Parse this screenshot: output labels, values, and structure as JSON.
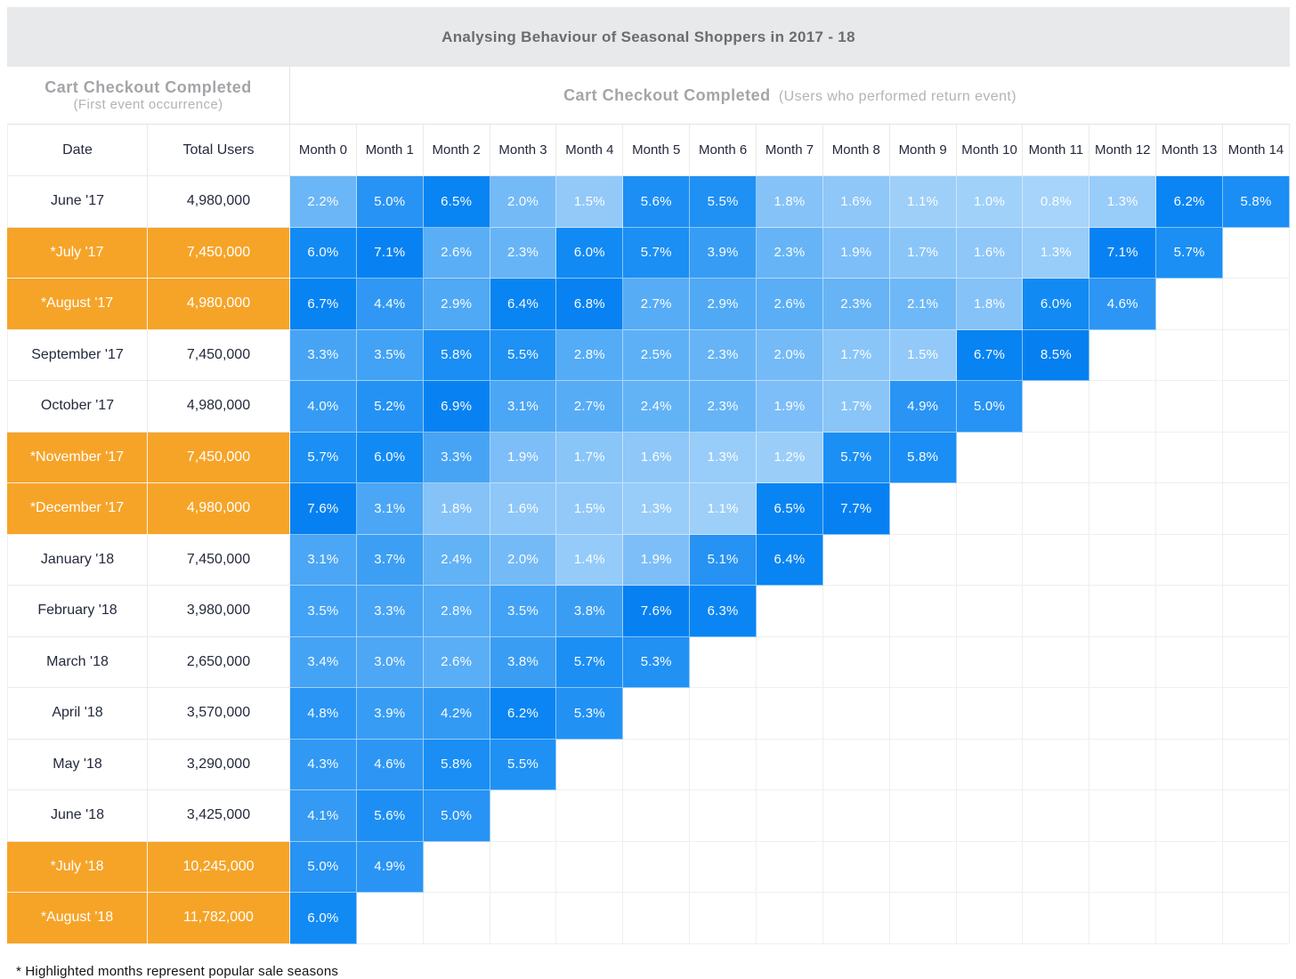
{
  "title": "Analysing Behaviour of Seasonal Shoppers in 2017 - 18",
  "left_header": {
    "title": "Cart Checkout Completed",
    "subtitle": "(First event occurrence)"
  },
  "right_header": {
    "title": "Cart Checkout Completed",
    "subtitle": "(Users who performed return event)"
  },
  "footnote": "* Highlighted months represent popular sale seasons",
  "colors": {
    "highlight_orange": "#F6A428",
    "title_band_bg": "#E8E9EA",
    "title_text": "#6A6C6F",
    "subheader_title_text": "#A3A5A8",
    "subheader_subtitle_text": "#B1B3B6",
    "header_text": "#242A3C",
    "cell_text": "#FFFFFF",
    "empty_cell_border": "#EFEFEF",
    "heat_scale_stops": [
      [
        0.8,
        "#A6D4FA"
      ],
      [
        1.1,
        "#9DCFF9"
      ],
      [
        1.4,
        "#95CBF9"
      ],
      [
        1.6,
        "#8EC7F8"
      ],
      [
        1.8,
        "#85C2F8"
      ],
      [
        2.0,
        "#74BAF7"
      ],
      [
        2.3,
        "#66B4F6"
      ],
      [
        2.6,
        "#5AAEF6"
      ],
      [
        3.0,
        "#4DA7F5"
      ],
      [
        3.4,
        "#45A3F5"
      ],
      [
        3.9,
        "#379CF4"
      ],
      [
        4.4,
        "#3098F4"
      ],
      [
        4.9,
        "#2994F4"
      ],
      [
        5.4,
        "#2090F4"
      ],
      [
        5.8,
        "#1A8EF4"
      ],
      [
        6.2,
        "#0A85F3"
      ],
      [
        6.8,
        "#0882F2"
      ],
      [
        8.5,
        "#0680F0"
      ]
    ]
  },
  "chart_data": {
    "type": "heatmap",
    "title": "Analysing Behaviour of Seasonal Shoppers in 2017 - 18",
    "column_headers": {
      "date": "Date",
      "total_users": "Total Users"
    },
    "month_columns": [
      "Month 0",
      "Month 1",
      "Month 2",
      "Month 3",
      "Month 4",
      "Month 5",
      "Month 6",
      "Month 7",
      "Month 8",
      "Month 9",
      "Month 10",
      "Month 11",
      "Month 12",
      "Month 13",
      "Month 14"
    ],
    "value_format": "percent_1dp",
    "value_range": [
      0.8,
      8.5
    ],
    "rows": [
      {
        "date": "June '17",
        "highlighted": false,
        "total_users": "4,980,000",
        "values": [
          2.2,
          5.0,
          6.5,
          2.0,
          1.5,
          5.6,
          5.5,
          1.8,
          1.6,
          1.1,
          1.0,
          0.8,
          1.3,
          6.2,
          5.8
        ]
      },
      {
        "date": "*July '17",
        "highlighted": true,
        "total_users": "7,450,000",
        "values": [
          6.0,
          7.1,
          2.6,
          2.3,
          6.0,
          5.7,
          3.9,
          2.3,
          1.9,
          1.7,
          1.6,
          1.3,
          7.1,
          5.7
        ]
      },
      {
        "date": "*August '17",
        "highlighted": true,
        "total_users": "4,980,000",
        "values": [
          6.7,
          4.4,
          2.9,
          6.4,
          6.8,
          2.7,
          2.9,
          2.6,
          2.3,
          2.1,
          1.8,
          6.0,
          4.6
        ]
      },
      {
        "date": "September '17",
        "highlighted": false,
        "total_users": "7,450,000",
        "values": [
          3.3,
          3.5,
          5.8,
          5.5,
          2.8,
          2.5,
          2.3,
          2.0,
          1.7,
          1.5,
          6.7,
          8.5
        ]
      },
      {
        "date": "October '17",
        "highlighted": false,
        "total_users": "4,980,000",
        "values": [
          4.0,
          5.2,
          6.9,
          3.1,
          2.7,
          2.4,
          2.3,
          1.9,
          1.7,
          4.9,
          5.0
        ]
      },
      {
        "date": "*November '17",
        "highlighted": true,
        "total_users": "7,450,000",
        "values": [
          5.7,
          6.0,
          3.3,
          1.9,
          1.7,
          1.6,
          1.3,
          1.2,
          5.7,
          5.8
        ]
      },
      {
        "date": "*December '17",
        "highlighted": true,
        "total_users": "4,980,000",
        "values": [
          7.6,
          3.1,
          1.8,
          1.6,
          1.5,
          1.3,
          1.1,
          6.5,
          7.7
        ]
      },
      {
        "date": "January '18",
        "highlighted": false,
        "total_users": "7,450,000",
        "values": [
          3.1,
          3.7,
          2.4,
          2.0,
          1.4,
          1.9,
          5.1,
          6.4
        ]
      },
      {
        "date": "February '18",
        "highlighted": false,
        "total_users": "3,980,000",
        "values": [
          3.5,
          3.3,
          2.8,
          3.5,
          3.8,
          7.6,
          6.3
        ]
      },
      {
        "date": "March '18",
        "highlighted": false,
        "total_users": "2,650,000",
        "values": [
          3.4,
          3.0,
          2.6,
          3.8,
          5.7,
          5.3
        ]
      },
      {
        "date": "April '18",
        "highlighted": false,
        "total_users": "3,570,000",
        "values": [
          4.8,
          3.9,
          4.2,
          6.2,
          5.3
        ]
      },
      {
        "date": "May '18",
        "highlighted": false,
        "total_users": "3,290,000",
        "values": [
          4.3,
          4.6,
          5.8,
          5.5
        ]
      },
      {
        "date": "June '18",
        "highlighted": false,
        "total_users": "3,425,000",
        "values": [
          4.1,
          5.6,
          5.0
        ]
      },
      {
        "date": "*July '18",
        "highlighted": true,
        "total_users": "10,245,000",
        "values": [
          5.0,
          4.9
        ]
      },
      {
        "date": "*August '18",
        "highlighted": true,
        "total_users": "11,782,000",
        "values": [
          6.0
        ]
      }
    ]
  }
}
